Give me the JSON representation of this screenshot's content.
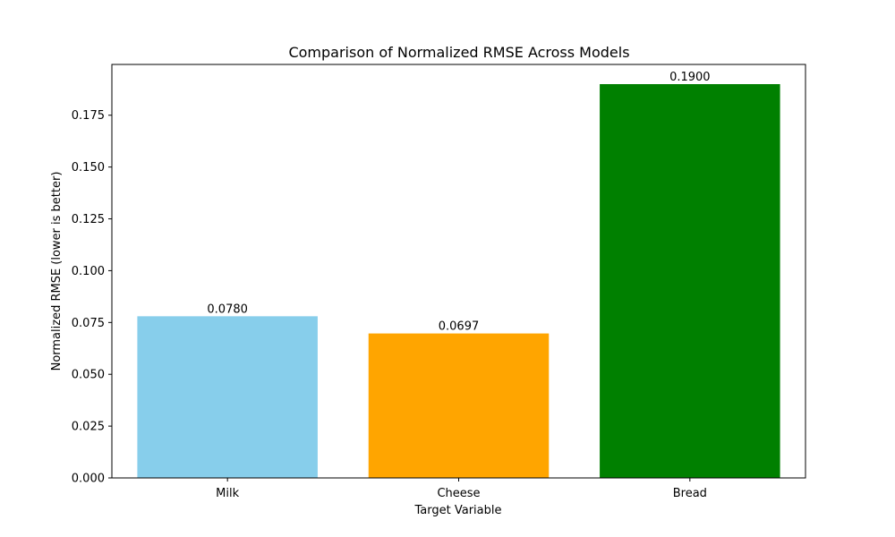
{
  "chart_data": {
    "type": "bar",
    "title": "Comparison of Normalized RMSE Across Models",
    "xlabel": "Target Variable",
    "ylabel": "Normalized RMSE (lower is better)",
    "categories": [
      "Milk",
      "Cheese",
      "Bread"
    ],
    "values": [
      0.078,
      0.0697,
      0.19
    ],
    "value_labels": [
      "0.0780",
      "0.0697",
      "0.1900"
    ],
    "colors": [
      "#87ceeb",
      "#ffa500",
      "#008000"
    ],
    "ylim": [
      0,
      0.1995
    ],
    "yticks": [
      0,
      0.025,
      0.05,
      0.075,
      0.1,
      0.125,
      0.15,
      0.175
    ],
    "ytick_labels": [
      "0.000",
      "0.025",
      "0.050",
      "0.075",
      "0.100",
      "0.125",
      "0.150",
      "0.175"
    ],
    "grid": false,
    "legend": "none"
  }
}
